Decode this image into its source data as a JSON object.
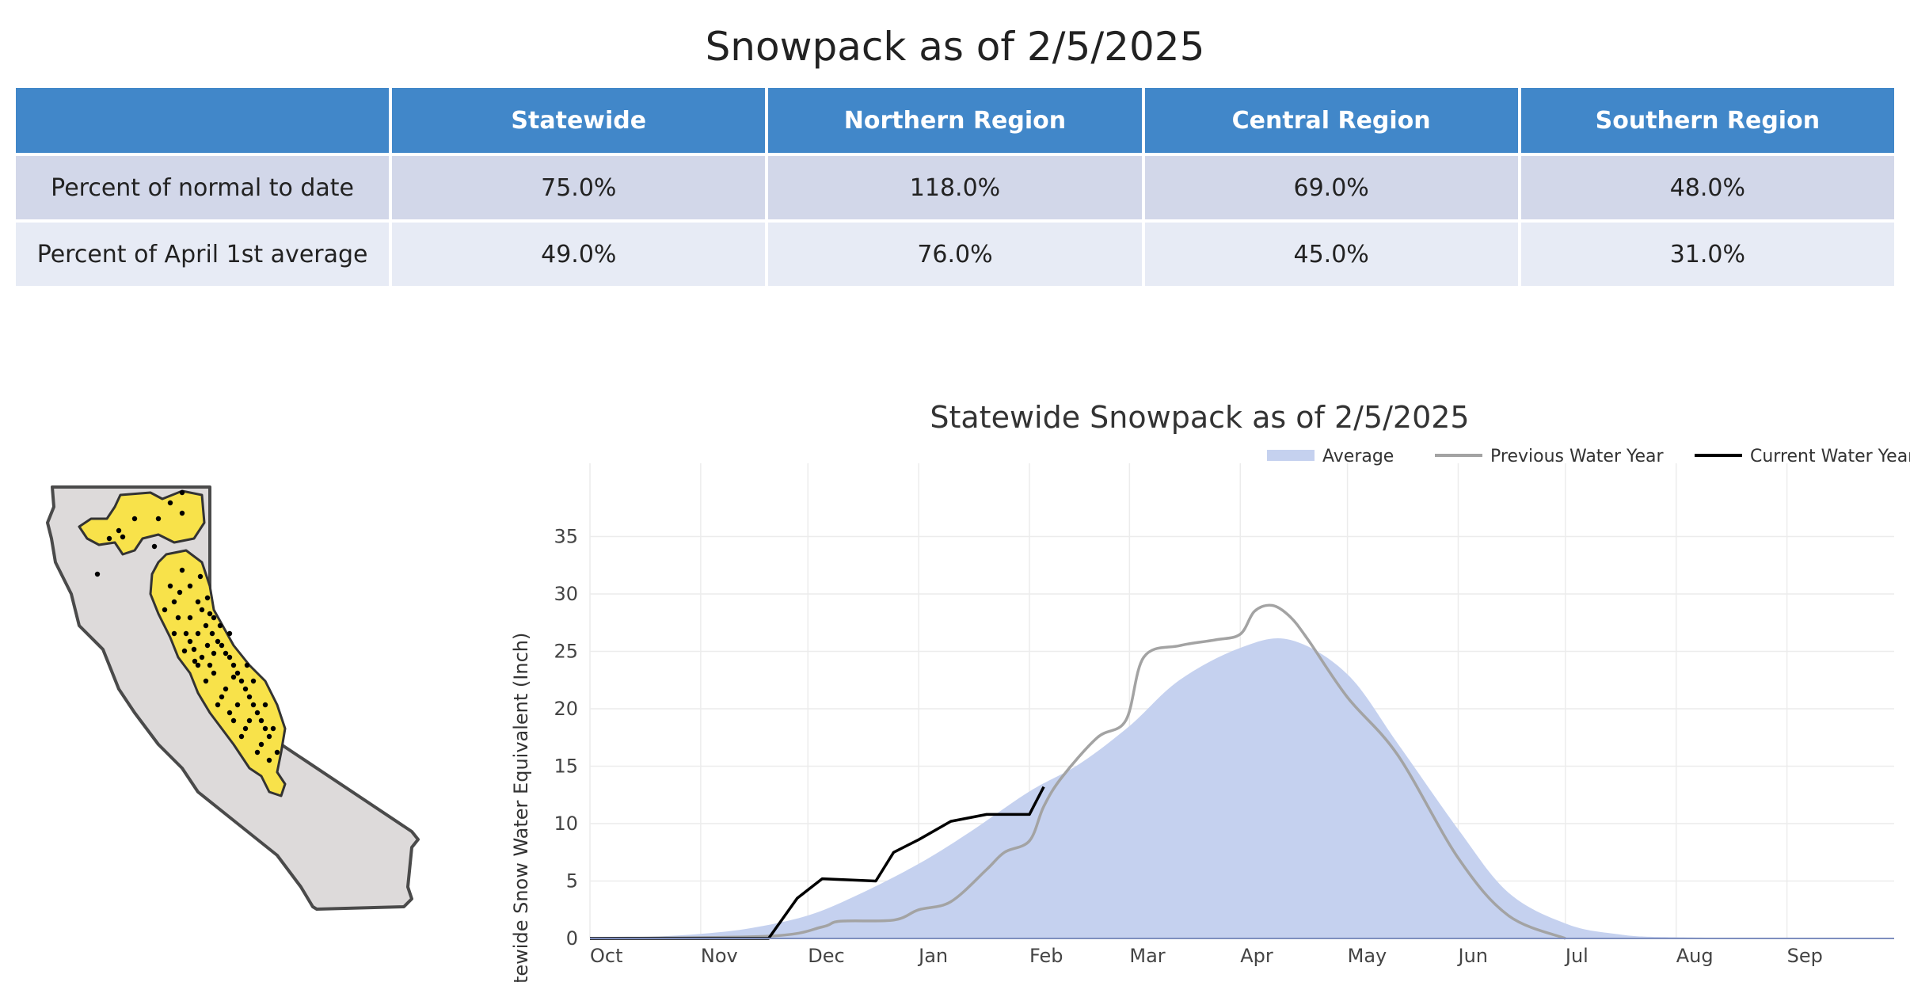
{
  "page_title": "Snowpack as of 2/5/2025",
  "table": {
    "headers": [
      "",
      "Statewide",
      "Northern Region",
      "Central Region",
      "Southern Region"
    ],
    "rows": [
      {
        "label": "Percent of normal to date",
        "values": [
          "75.0%",
          "118.0%",
          "69.0%",
          "48.0%"
        ]
      },
      {
        "label": "Percent of April 1st average",
        "values": [
          "49.0%",
          "76.0%",
          "45.0%",
          "31.0%"
        ]
      }
    ]
  },
  "colors": {
    "header_bg": "#4187c9",
    "row_odd": "#d2d7e9",
    "row_even": "#e7ebf5",
    "average_fill": "#c5d1ef",
    "previous_line": "#a3a3a3",
    "current_line": "#000000",
    "map_land": "#dddada",
    "map_region": "#f8e24a"
  },
  "chart_data": {
    "type": "line",
    "title": "Statewide Snowpack as of 2/5/2025",
    "ylabel": "Statewide Snow Water Equivalent (Inch)",
    "xlabel": "",
    "x_tick_labels": [
      "Oct",
      "Nov",
      "Dec",
      "Jan",
      "Feb",
      "Mar",
      "Apr",
      "May",
      "Jun",
      "Jul",
      "Aug",
      "Sep"
    ],
    "y_ticks": [
      0,
      5,
      10,
      15,
      20,
      25,
      30,
      35
    ],
    "ylim": [
      0,
      40
    ],
    "grid": true,
    "legend_position": "top-right",
    "series": [
      {
        "name": "Average",
        "style": "area",
        "points": [
          [
            "Oct 1",
            0
          ],
          [
            "Oct 15",
            0.1
          ],
          [
            "Nov 1",
            0.4
          ],
          [
            "Nov 15",
            0.9
          ],
          [
            "Dec 1",
            2
          ],
          [
            "Dec 15",
            3.8
          ],
          [
            "Jan 1",
            6.5
          ],
          [
            "Jan 15",
            9.2
          ],
          [
            "Feb 1",
            12.8
          ],
          [
            "Feb 15",
            15.2
          ],
          [
            "Mar 1",
            18.5
          ],
          [
            "Mar 15",
            22.5
          ],
          [
            "Apr 1",
            25.3
          ],
          [
            "Apr 15",
            26
          ],
          [
            "May 1",
            23
          ],
          [
            "May 15",
            17
          ],
          [
            "Jun 1",
            9.5
          ],
          [
            "Jun 15",
            4
          ],
          [
            "Jul 1",
            1.3
          ],
          [
            "Jul 15",
            0.4
          ],
          [
            "Aug 1",
            0.1
          ],
          [
            "Sep 30",
            0
          ]
        ]
      },
      {
        "name": "Previous Water Year",
        "style": "line",
        "points": [
          [
            "Oct 1",
            0
          ],
          [
            "Nov 20",
            0.2
          ],
          [
            "Dec 5",
            1
          ],
          [
            "Dec 10",
            1.5
          ],
          [
            "Dec 25",
            1.6
          ],
          [
            "Jan 1",
            2.5
          ],
          [
            "Jan 10",
            3.2
          ],
          [
            "Jan 20",
            6
          ],
          [
            "Jan 25",
            7.5
          ],
          [
            "Feb 1",
            8.5
          ],
          [
            "Feb 5",
            11.5
          ],
          [
            "Feb 10",
            14
          ],
          [
            "Feb 20",
            17.5
          ],
          [
            "Feb 28",
            19
          ],
          [
            "Mar 5",
            24.5
          ],
          [
            "Mar 15",
            25.5
          ],
          [
            "Mar 25",
            26
          ],
          [
            "Apr 1",
            26.5
          ],
          [
            "Apr 5",
            28.5
          ],
          [
            "Apr 10",
            29
          ],
          [
            "Apr 15",
            28
          ],
          [
            "Apr 20",
            26
          ],
          [
            "May 1",
            21
          ],
          [
            "May 15",
            16
          ],
          [
            "Jun 1",
            7
          ],
          [
            "Jun 15",
            2
          ],
          [
            "Jul 1",
            0
          ]
        ]
      },
      {
        "name": "Current Water Year",
        "style": "line",
        "points": [
          [
            "Oct 1",
            0
          ],
          [
            "Nov 20",
            0
          ],
          [
            "Nov 28",
            3.5
          ],
          [
            "Dec 5",
            5.2
          ],
          [
            "Dec 20",
            5
          ],
          [
            "Dec 25",
            7.5
          ],
          [
            "Jan 1",
            8.6
          ],
          [
            "Jan 10",
            10.2
          ],
          [
            "Jan 20",
            10.8
          ],
          [
            "Feb 1",
            10.8
          ],
          [
            "Feb 3",
            12
          ],
          [
            "Feb 5",
            13.2
          ]
        ]
      }
    ]
  }
}
